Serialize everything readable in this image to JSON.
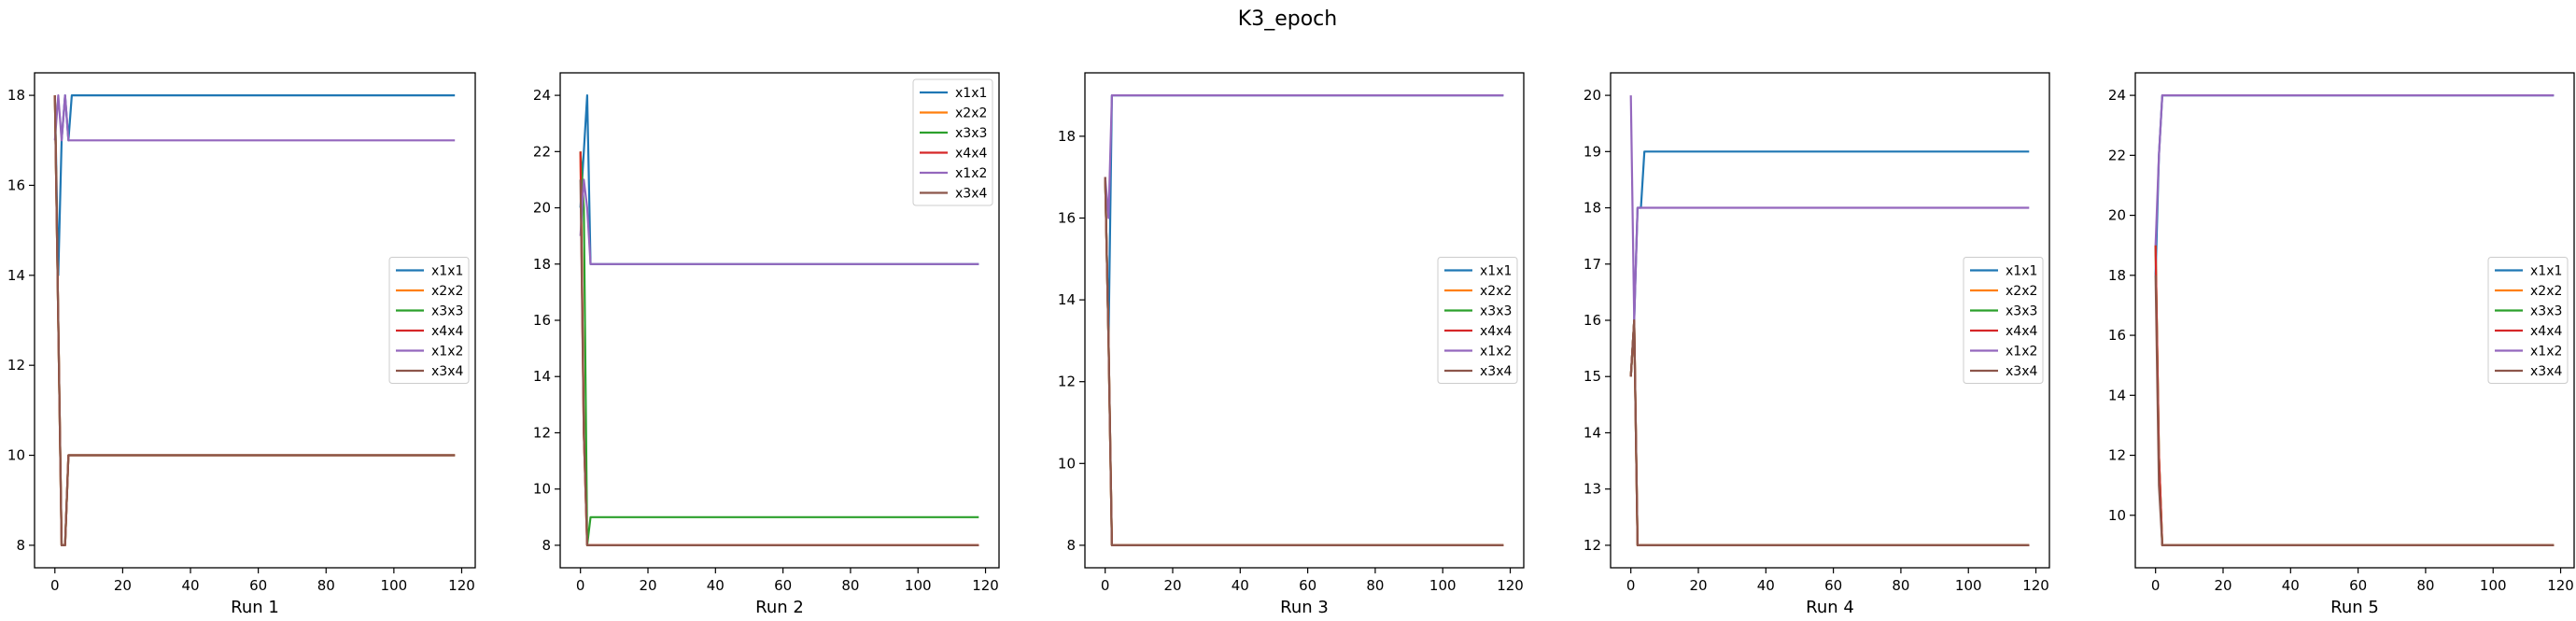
{
  "suptitle": "K3_epoch",
  "legend_labels": [
    "x1x1",
    "x2x2",
    "x3x3",
    "x4x4",
    "x1x2",
    "x3x4"
  ],
  "colors": {
    "x1x1": "#1f77b4",
    "x2x2": "#ff7f0e",
    "x3x3": "#2ca02c",
    "x4x4": "#d62728",
    "x1x2": "#9467bd",
    "x3x4": "#8c564b"
  },
  "chart_data": [
    {
      "type": "line",
      "title": "",
      "xlabel": "Run 1",
      "ylabel": "",
      "xlim": [
        -6,
        124
      ],
      "ylim": [
        7.5,
        18.5
      ],
      "xticks": [
        0,
        20,
        40,
        60,
        80,
        100,
        120
      ],
      "yticks": [
        8,
        10,
        12,
        14,
        16,
        18
      ],
      "legend": "center-right",
      "grid": false,
      "series": [
        {
          "name": "x1x1",
          "points": [
            [
              0,
              18
            ],
            [
              1,
              14
            ],
            [
              2,
              17
            ],
            [
              3,
              18
            ],
            [
              4,
              17
            ],
            [
              5,
              18
            ],
            [
              118,
              18
            ]
          ]
        },
        {
          "name": "x2x2",
          "points": [
            [
              0,
              18
            ],
            [
              1,
              13
            ],
            [
              2,
              8
            ],
            [
              3,
              8
            ],
            [
              4,
              10
            ],
            [
              118,
              10
            ]
          ]
        },
        {
          "name": "x3x3",
          "points": [
            [
              0,
              18
            ],
            [
              1,
              13
            ],
            [
              2,
              8
            ],
            [
              3,
              8
            ],
            [
              4,
              10
            ],
            [
              118,
              10
            ]
          ]
        },
        {
          "name": "x4x4",
          "points": [
            [
              0,
              18
            ],
            [
              1,
              13
            ],
            [
              2,
              8
            ],
            [
              3,
              8
            ],
            [
              4,
              10
            ],
            [
              118,
              10
            ]
          ]
        },
        {
          "name": "x1x2",
          "points": [
            [
              0,
              17
            ],
            [
              1,
              18
            ],
            [
              2,
              17
            ],
            [
              3,
              18
            ],
            [
              4,
              17
            ],
            [
              118,
              17
            ]
          ]
        },
        {
          "name": "x3x4",
          "points": [
            [
              0,
              18
            ],
            [
              1,
              13
            ],
            [
              2,
              8
            ],
            [
              3,
              8
            ],
            [
              4,
              10
            ],
            [
              118,
              10
            ]
          ]
        }
      ]
    },
    {
      "type": "line",
      "title": "",
      "xlabel": "Run 2",
      "ylabel": "",
      "xlim": [
        -6,
        124
      ],
      "ylim": [
        7.2,
        24.8
      ],
      "xticks": [
        0,
        20,
        40,
        60,
        80,
        100,
        120
      ],
      "yticks": [
        8,
        10,
        12,
        14,
        16,
        18,
        20,
        22,
        24
      ],
      "legend": "upper-right",
      "grid": false,
      "series": [
        {
          "name": "x1x1",
          "points": [
            [
              0,
              20
            ],
            [
              1,
              22
            ],
            [
              2,
              24
            ],
            [
              3,
              18
            ],
            [
              118,
              18
            ]
          ]
        },
        {
          "name": "x2x2",
          "points": [
            [
              0,
              22
            ],
            [
              1,
              12
            ],
            [
              2,
              8
            ],
            [
              118,
              8
            ]
          ]
        },
        {
          "name": "x3x3",
          "points": [
            [
              0,
              22
            ],
            [
              1,
              20
            ],
            [
              2,
              8
            ],
            [
              3,
              9
            ],
            [
              118,
              9
            ]
          ]
        },
        {
          "name": "x4x4",
          "points": [
            [
              0,
              22
            ],
            [
              1,
              12
            ],
            [
              2,
              8
            ],
            [
              118,
              8
            ]
          ]
        },
        {
          "name": "x1x2",
          "points": [
            [
              0,
              19
            ],
            [
              1,
              21
            ],
            [
              2,
              20
            ],
            [
              3,
              18
            ],
            [
              118,
              18
            ]
          ]
        },
        {
          "name": "x3x4",
          "points": [
            [
              0,
              21
            ],
            [
              1,
              12
            ],
            [
              2,
              8
            ],
            [
              118,
              8
            ]
          ]
        }
      ]
    },
    {
      "type": "line",
      "title": "",
      "xlabel": "Run 3",
      "ylabel": "",
      "xlim": [
        -6,
        124
      ],
      "ylim": [
        7.45,
        19.55
      ],
      "xticks": [
        0,
        20,
        40,
        60,
        80,
        100,
        120
      ],
      "yticks": [
        8,
        10,
        12,
        14,
        16,
        18
      ],
      "legend": "center-right",
      "grid": false,
      "series": [
        {
          "name": "x1x1",
          "points": [
            [
              0,
              17
            ],
            [
              1,
              13
            ],
            [
              2,
              19
            ],
            [
              118,
              19
            ]
          ]
        },
        {
          "name": "x2x2",
          "points": [
            [
              0,
              17
            ],
            [
              1,
              13
            ],
            [
              2,
              8
            ],
            [
              118,
              8
            ]
          ]
        },
        {
          "name": "x3x3",
          "points": [
            [
              0,
              17
            ],
            [
              1,
              13
            ],
            [
              2,
              8
            ],
            [
              118,
              8
            ]
          ]
        },
        {
          "name": "x4x4",
          "points": [
            [
              0,
              17
            ],
            [
              1,
              13
            ],
            [
              2,
              8
            ],
            [
              118,
              8
            ]
          ]
        },
        {
          "name": "x1x2",
          "points": [
            [
              0,
              17
            ],
            [
              1,
              16
            ],
            [
              2,
              19
            ],
            [
              118,
              19
            ]
          ]
        },
        {
          "name": "x3x4",
          "points": [
            [
              0,
              17
            ],
            [
              1,
              13
            ],
            [
              2,
              8
            ],
            [
              118,
              8
            ]
          ]
        }
      ]
    },
    {
      "type": "line",
      "title": "",
      "xlabel": "Run 4",
      "ylabel": "",
      "xlim": [
        -6,
        124
      ],
      "ylim": [
        11.6,
        20.4
      ],
      "xticks": [
        0,
        20,
        40,
        60,
        80,
        100,
        120
      ],
      "yticks": [
        12,
        13,
        14,
        15,
        16,
        17,
        18,
        19,
        20
      ],
      "legend": "center-right",
      "grid": false,
      "series": [
        {
          "name": "x1x1",
          "points": [
            [
              0,
              15
            ],
            [
              1,
              16
            ],
            [
              2,
              18
            ],
            [
              3,
              18
            ],
            [
              4,
              19
            ],
            [
              118,
              19
            ]
          ]
        },
        {
          "name": "x2x2",
          "points": [
            [
              0,
              15
            ],
            [
              1,
              16
            ],
            [
              2,
              12
            ],
            [
              118,
              12
            ]
          ]
        },
        {
          "name": "x3x3",
          "points": [
            [
              0,
              15
            ],
            [
              1,
              16
            ],
            [
              2,
              12
            ],
            [
              118,
              12
            ]
          ]
        },
        {
          "name": "x4x4",
          "points": [
            [
              0,
              15
            ],
            [
              1,
              16
            ],
            [
              2,
              12
            ],
            [
              118,
              12
            ]
          ]
        },
        {
          "name": "x1x2",
          "points": [
            [
              0,
              20
            ],
            [
              1,
              16
            ],
            [
              2,
              18
            ],
            [
              118,
              18
            ]
          ]
        },
        {
          "name": "x3x4",
          "points": [
            [
              0,
              15
            ],
            [
              1,
              16
            ],
            [
              2,
              12
            ],
            [
              118,
              12
            ]
          ]
        }
      ]
    },
    {
      "type": "line",
      "title": "",
      "xlabel": "Run 5",
      "ylabel": "",
      "xlim": [
        -6,
        124
      ],
      "ylim": [
        8.25,
        24.75
      ],
      "xticks": [
        0,
        20,
        40,
        60,
        80,
        100,
        120
      ],
      "yticks": [
        10,
        12,
        14,
        16,
        18,
        20,
        22,
        24
      ],
      "legend": "center-right",
      "grid": false,
      "series": [
        {
          "name": "x1x1",
          "points": [
            [
              0,
              18
            ],
            [
              1,
              22
            ],
            [
              2,
              24
            ],
            [
              118,
              24
            ]
          ]
        },
        {
          "name": "x2x2",
          "points": [
            [
              0,
              19
            ],
            [
              1,
              12
            ],
            [
              2,
              9
            ],
            [
              118,
              9
            ]
          ]
        },
        {
          "name": "x3x3",
          "points": [
            [
              0,
              19
            ],
            [
              1,
              12
            ],
            [
              2,
              9
            ],
            [
              118,
              9
            ]
          ]
        },
        {
          "name": "x4x4",
          "points": [
            [
              0,
              19
            ],
            [
              1,
              12
            ],
            [
              2,
              9
            ],
            [
              118,
              9
            ]
          ]
        },
        {
          "name": "x1x2",
          "points": [
            [
              0,
              19
            ],
            [
              1,
              22
            ],
            [
              2,
              24
            ],
            [
              118,
              24
            ]
          ]
        },
        {
          "name": "x3x4",
          "points": [
            [
              0,
              18
            ],
            [
              1,
              11
            ],
            [
              2,
              9
            ],
            [
              118,
              9
            ]
          ]
        }
      ]
    }
  ]
}
